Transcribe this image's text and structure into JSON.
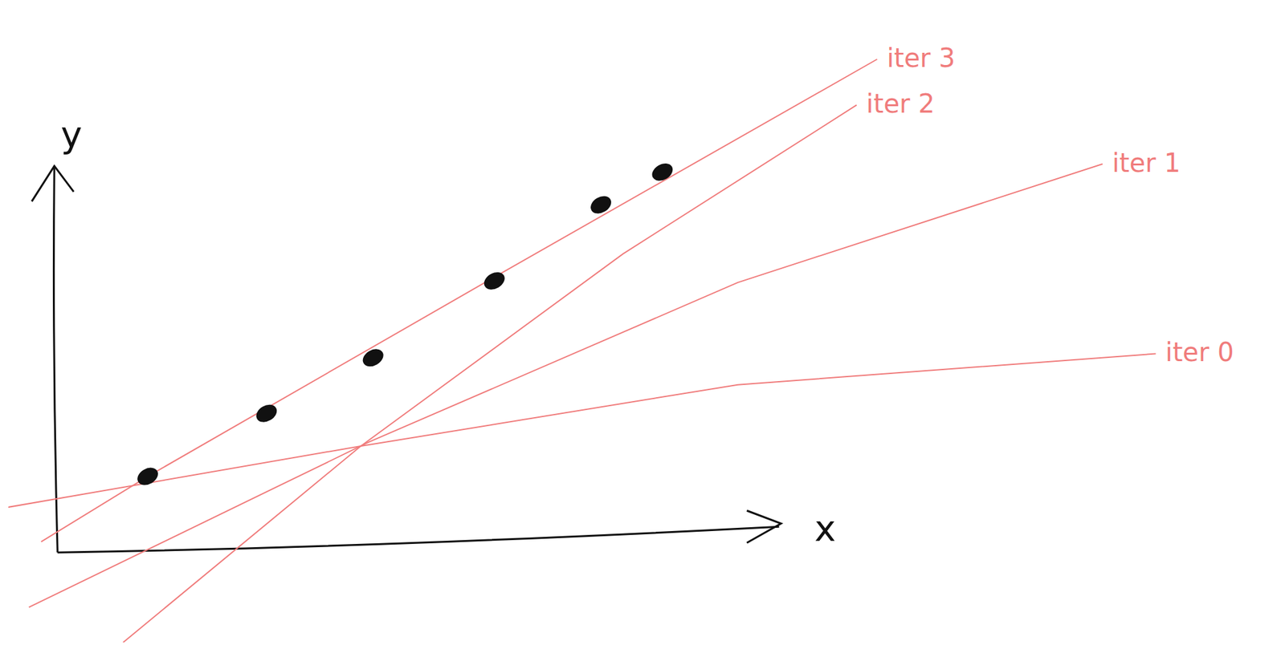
{
  "chart_data": {
    "type": "scatter",
    "x_label": "x",
    "y_label": "y",
    "xlim": [
      -60,
      1360
    ],
    "ylim": [
      -110,
      640
    ],
    "tick_labels": false,
    "grid": false,
    "color": "#111111",
    "marker": "ellipse",
    "x": [
      110,
      255,
      385,
      533,
      663,
      738
    ],
    "values": [
      93,
      170,
      238,
      332,
      425,
      465
    ],
    "series": [
      {
        "name": "iter 0",
        "type": "line",
        "color": "#f07c7c",
        "line_style": "solid",
        "x": [
          -62,
          370,
          830,
          1340
        ],
        "values": [
          55,
          130,
          205,
          243
        ]
      },
      {
        "name": "iter 1",
        "type": "line",
        "color": "#f07c7c",
        "line_style": "solid",
        "x": [
          -35,
          380,
          830,
          1275
        ],
        "values": [
          -67,
          135,
          330,
          475
        ]
      },
      {
        "name": "iter 2",
        "type": "line",
        "color": "#f07c7c",
        "line_style": "solid",
        "x": [
          80,
          370,
          690,
          975
        ],
        "values": [
          -110,
          130,
          365,
          547
        ]
      },
      {
        "name": "iter 3",
        "type": "line",
        "color": "#f07c7c",
        "line_style": "solid",
        "x": [
          -20,
          110,
          530,
          1000
        ],
        "values": [
          13,
          93,
          335,
          603
        ]
      }
    ]
  }
}
